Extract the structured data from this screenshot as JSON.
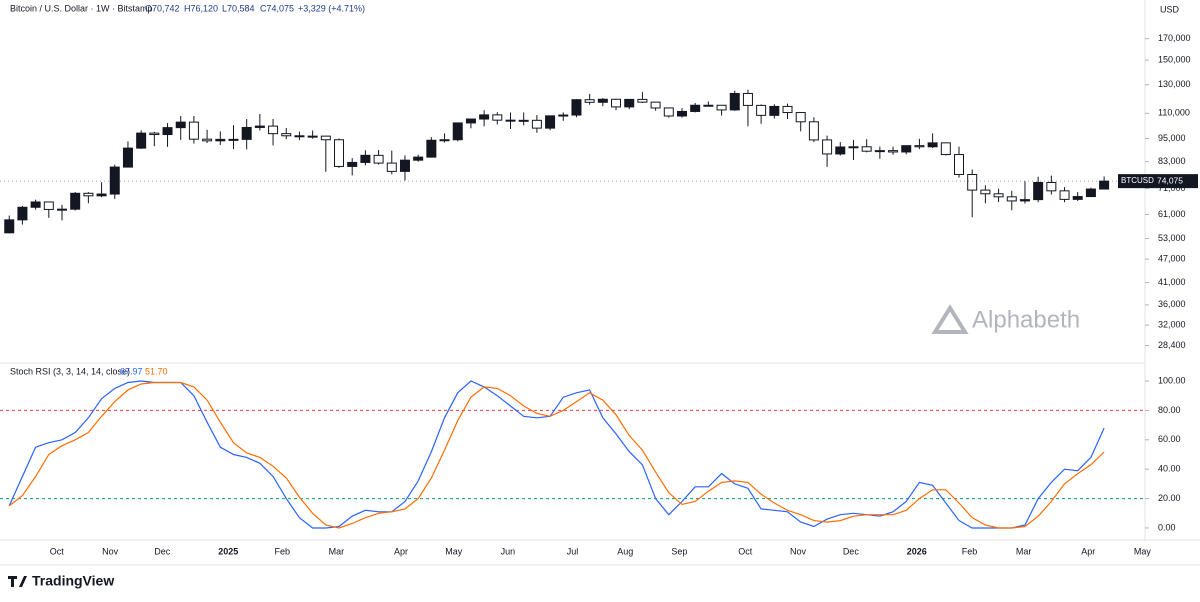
{
  "header": {
    "symbol": "Bitcoin / U.S. Dollar · 1W · Bitstamp",
    "ohlc": [
      "O70,742",
      "H76,120",
      "L70,584",
      "C74,075",
      "+3,329 (+4.71%)"
    ],
    "currency": "USD"
  },
  "watermark": "Alphabeth",
  "footer": "TradingView",
  "chart_data": [
    {
      "type": "candlestick",
      "log_scale": true,
      "up_color": "#131722",
      "down_color": "#ffffff",
      "border_color": "#131722",
      "open": [
        54800,
        59100,
        63600,
        65600,
        62800,
        62900,
        69000,
        68000,
        68700,
        80400,
        89800,
        98000,
        97200,
        101200,
        104500,
        94600,
        93700,
        94500,
        94500,
        101300,
        102100,
        97700,
        96500,
        96100,
        96300,
        94300,
        80700,
        82600,
        86100,
        82300,
        78400,
        83700,
        85200,
        94000,
        94300,
        104000,
        106400,
        109000,
        105700,
        105600,
        105600,
        100900,
        108400,
        108900,
        119100,
        117300,
        119400,
        114200,
        119300,
        117400,
        113500,
        108300,
        111200,
        115300,
        115300,
        112200,
        123500,
        115200,
        108700,
        114500,
        110500,
        104700,
        94200,
        86800,
        90400,
        90500,
        88200,
        88500,
        87800,
        91100,
        90500,
        92600,
        86500,
        77000,
        70300,
        68800,
        67600,
        66000,
        66500,
        73500,
        70000,
        66600,
        67700,
        70742
      ],
      "high": [
        60600,
        64100,
        66500,
        65600,
        64500,
        69500,
        69500,
        73600,
        81500,
        93400,
        99600,
        98800,
        103900,
        108300,
        108300,
        99900,
        99000,
        102700,
        106400,
        109600,
        106400,
        101000,
        98800,
        99500,
        96500,
        95000,
        84700,
        88700,
        88800,
        88500,
        86100,
        86400,
        95700,
        97900,
        104300,
        105800,
        112000,
        110700,
        110500,
        110500,
        108900,
        108500,
        110600,
        119500,
        123200,
        120200,
        119800,
        119300,
        124500,
        117600,
        113500,
        113400,
        116800,
        117900,
        115400,
        125500,
        126200,
        115900,
        116000,
        116400,
        110800,
        107500,
        96600,
        93000,
        94200,
        94600,
        90600,
        90600,
        91200,
        94800,
        97900,
        92600,
        90600,
        79300,
        72300,
        70900,
        70000,
        74000,
        76000,
        76500,
        71500,
        69500,
        71300,
        76120
      ],
      "low": [
        54600,
        57500,
        62700,
        59800,
        58900,
        62400,
        65100,
        67500,
        66800,
        80200,
        89400,
        90800,
        90500,
        94200,
        92200,
        92500,
        91500,
        89300,
        89200,
        99500,
        91200,
        94700,
        94100,
        94900,
        78200,
        80000,
        76600,
        81200,
        81600,
        77100,
        74400,
        83000,
        85000,
        92800,
        93400,
        100800,
        102000,
        103100,
        100400,
        102600,
        98200,
        99700,
        105300,
        107500,
        115700,
        114700,
        112000,
        112700,
        116800,
        111700,
        107300,
        107300,
        110600,
        114400,
        108600,
        111600,
        102000,
        103500,
        106700,
        106400,
        99000,
        93000,
        80500,
        86000,
        83800,
        87600,
        84400,
        86400,
        86600,
        89300,
        89800,
        86000,
        75600,
        60000,
        65100,
        65600,
        62500,
        65000,
        65500,
        68500,
        65500,
        66000,
        67500,
        70584
      ],
      "close": [
        59100,
        63600,
        65600,
        62800,
        62900,
        69000,
        68000,
        68700,
        80400,
        89800,
        98000,
        97200,
        101200,
        104500,
        94600,
        93700,
        94500,
        94000,
        101300,
        102100,
        97700,
        96500,
        96100,
        96300,
        94300,
        80700,
        82600,
        86100,
        82300,
        78400,
        83700,
        85200,
        94000,
        94300,
        104000,
        106400,
        109000,
        105700,
        105600,
        105500,
        100900,
        108400,
        108900,
        119100,
        117300,
        119400,
        114200,
        119300,
        117400,
        113500,
        108300,
        111200,
        115300,
        115200,
        112200,
        123500,
        115200,
        108700,
        114500,
        110500,
        104700,
        94200,
        86800,
        90400,
        90500,
        88200,
        88500,
        87800,
        91100,
        90500,
        92600,
        86500,
        77000,
        70300,
        68800,
        67600,
        66000,
        66500,
        73500,
        70000,
        66600,
        67700,
        70742,
        74075
      ],
      "ylim": [
        25800,
        213000
      ],
      "yticks": [
        {
          "value": 28400,
          "label": "28,400"
        },
        {
          "value": 32000,
          "label": "32,000"
        },
        {
          "value": 36000,
          "label": "36,000"
        },
        {
          "value": 41000,
          "label": "41,000"
        },
        {
          "value": 47000,
          "label": "47,000"
        },
        {
          "value": 53000,
          "label": "53,000"
        },
        {
          "value": 61000,
          "label": "61,000"
        },
        {
          "value": 71000,
          "label": "71,000"
        },
        {
          "value": 83000,
          "label": "83,000"
        },
        {
          "value": 95000,
          "label": "95,000"
        },
        {
          "value": 110000,
          "label": "110,000"
        },
        {
          "value": 130000,
          "label": "130,000"
        },
        {
          "value": 150000,
          "label": "150,000"
        },
        {
          "value": 170000,
          "label": "170,000"
        }
      ],
      "price_tag": {
        "symbol": "BTCUSD",
        "value": 74075,
        "label": "74,075"
      }
    },
    {
      "type": "line",
      "title": "Stoch RSI (3, 3, 14, 14, close)",
      "series": [
        {
          "name": "K",
          "color": "#2962ff",
          "values": [
            15,
            35,
            55,
            58,
            60,
            65,
            75,
            88,
            95,
            99,
            100,
            99,
            99,
            99,
            90,
            72,
            55,
            50,
            48,
            44,
            35,
            20,
            7,
            0,
            0,
            1,
            8,
            12,
            11,
            11,
            18,
            32,
            52,
            75,
            92,
            100,
            96,
            90,
            83,
            76,
            75,
            76,
            89,
            92,
            94,
            75,
            64,
            52,
            43,
            20,
            9,
            18,
            28,
            28,
            37,
            30,
            27,
            13,
            12,
            11,
            4,
            1,
            6,
            9,
            10,
            9,
            8,
            11,
            18,
            31,
            29,
            17,
            5,
            0,
            0,
            0,
            0,
            2,
            20,
            31,
            40,
            39,
            48,
            67.97
          ]
        },
        {
          "name": "D",
          "color": "#ff6d00",
          "values": [
            15,
            22,
            35,
            50,
            56,
            60,
            65,
            76,
            86,
            94,
            98,
            99,
            99,
            99,
            96,
            87,
            72,
            58,
            51,
            48,
            42,
            34,
            21,
            10,
            2,
            0,
            3,
            7,
            10,
            11,
            13,
            20,
            34,
            53,
            73,
            89,
            96,
            95,
            90,
            83,
            78,
            76,
            80,
            86,
            92,
            87,
            77,
            63,
            53,
            38,
            24,
            16,
            18,
            25,
            31,
            32,
            31,
            23,
            17,
            12,
            9,
            5,
            4,
            5,
            8,
            9,
            9,
            9,
            12,
            20,
            26,
            26,
            17,
            7,
            2,
            0,
            0,
            1,
            8,
            18,
            30,
            37,
            43,
            51.7
          ]
        }
      ],
      "value_labels": [
        "67.97",
        "51.70"
      ],
      "upper_band": {
        "value": 80,
        "color": "#f23645"
      },
      "lower_band": {
        "value": 20,
        "color": "#089981"
      },
      "ylim": [
        -8.2,
        111.6
      ],
      "yticks": [
        {
          "value": 0,
          "label": "0.00"
        },
        {
          "value": 20,
          "label": "20.00"
        },
        {
          "value": 40,
          "label": "40.00"
        },
        {
          "value": 60,
          "label": "60.00"
        },
        {
          "value": 80,
          "label": "80.00"
        },
        {
          "value": 100,
          "label": "100.00"
        }
      ],
      "xlim": [
        -0.7,
        86.1
      ],
      "xticks": [
        {
          "value": 3.6,
          "label": "Oct"
        },
        {
          "value": 7.65,
          "label": "Nov"
        },
        {
          "value": 11.6,
          "label": "Dec"
        },
        {
          "value": 16.6,
          "label": "2025"
        },
        {
          "value": 20.7,
          "label": "Feb"
        },
        {
          "value": 24.8,
          "label": "Mar"
        },
        {
          "value": 29.7,
          "label": "Apr"
        },
        {
          "value": 33.7,
          "label": "May"
        },
        {
          "value": 37.8,
          "label": "Jun"
        },
        {
          "value": 42.7,
          "label": "Jul"
        },
        {
          "value": 46.7,
          "label": "Aug"
        },
        {
          "value": 50.8,
          "label": "Sep"
        },
        {
          "value": 55.8,
          "label": "Oct"
        },
        {
          "value": 59.8,
          "label": "Nov"
        },
        {
          "value": 63.8,
          "label": "Dec"
        },
        {
          "value": 68.8,
          "label": "2026"
        },
        {
          "value": 72.8,
          "label": "Feb"
        },
        {
          "value": 76.9,
          "label": "Mar"
        },
        {
          "value": 81.8,
          "label": "Apr"
        },
        {
          "value": 85.9,
          "label": "May"
        }
      ]
    }
  ]
}
